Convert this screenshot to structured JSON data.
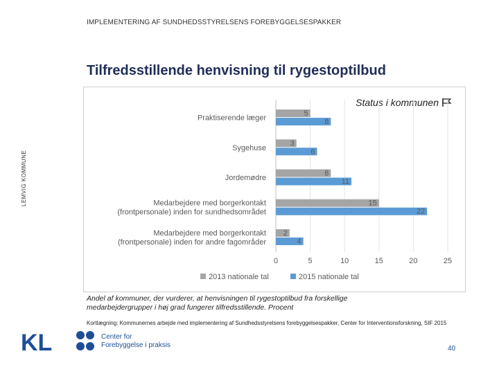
{
  "header": {
    "text": "IMPLEMENTERING AF SUNDHEDSSTYRELSENS FOREBYGGELSESPAKKER"
  },
  "title": "Tilfredsstillende henvisning til rygestoptilbud",
  "side_label": "LEMVIG KOMMUNE",
  "status_tag": "Status i kommunen",
  "caption": "Andel af kommuner, der vurderer, at henvisningen til rygestoptilbud fra forskellige medarbejdergrupper i høj grad fungerer tilfredsstillende. Procent",
  "source": "Kortlægning: Kommunernes arbejde med implementering af Sundhedsstyrelsens forebyggelsespakker, Center for Interventionsforskning, SIF 2015",
  "logos": {
    "kl": "KL",
    "cfp_line1": "Center for",
    "cfp_line2": "Forebyggelse i praksis"
  },
  "page_number": "40",
  "colors": {
    "series_2013": "#a5a5a5",
    "series_2015": "#5b9bd5",
    "title": "#1f2d5a",
    "brand_blue": "#1f4e96"
  },
  "chart_data": {
    "type": "bar",
    "orientation": "horizontal",
    "categories": [
      [
        "Praktiserende læger"
      ],
      [
        "Sygehuse"
      ],
      [
        "Jordemødre"
      ],
      [
        "Medarbejdere med borgerkontakt",
        "(frontpersonale) inden for sundhedsområdet"
      ],
      [
        "Medarbejdere med borgerkontakt",
        "(frontpersonale) inden for andre fagområder"
      ]
    ],
    "series": [
      {
        "name": "2013 nationale tal",
        "values": [
          5,
          3,
          8,
          15,
          2
        ]
      },
      {
        "name": "2015 nationale tal",
        "values": [
          8,
          6,
          11,
          22,
          4
        ]
      }
    ],
    "xlim": [
      0,
      25
    ],
    "xticks": [
      "0",
      "5",
      "10",
      "15",
      "20",
      "25"
    ],
    "legend_position": "bottom"
  }
}
